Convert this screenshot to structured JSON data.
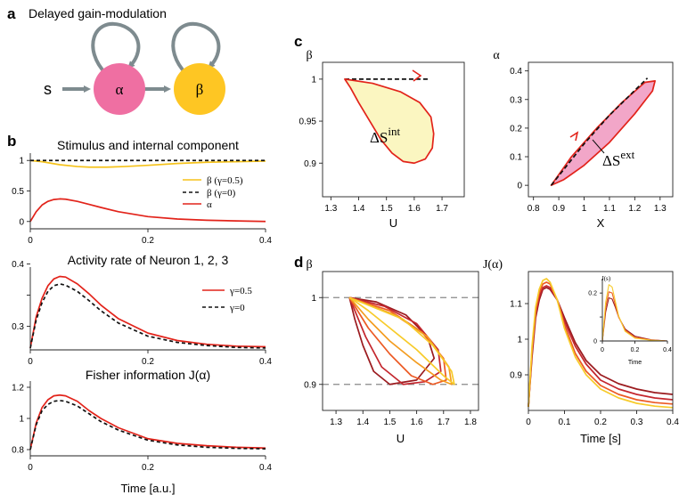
{
  "colors": {
    "alpha_node": "#ef6fa2",
    "beta_node": "#fec623",
    "arrow": "#7e8b8f",
    "red": "#e2231a",
    "yellow": "#f5c21a",
    "fill_yellow": "#fbf6c1",
    "fill_pink": "#f2a6c8",
    "black": "#111111"
  },
  "panel_a": {
    "label": "a",
    "title": "Delayed gain-modulation",
    "input_label": "s",
    "node_alpha": "α",
    "node_beta": "β"
  },
  "chart_data": [
    {
      "id": "b1",
      "panel_label": "b",
      "type": "line",
      "title": "Stimulus and internal component",
      "xlabel": "",
      "ylabel": "",
      "xlim": [
        0,
        0.4
      ],
      "ylim": [
        -0.12,
        1.12
      ],
      "xticks": [
        0,
        0.2,
        0.4
      ],
      "xtick_labels": [
        "0",
        "0.2",
        "0.4"
      ],
      "yticks": [
        0,
        0.5,
        1
      ],
      "ytick_labels": [
        "0",
        "0.5",
        "1"
      ],
      "series": [
        {
          "name": "β (γ=0.5)",
          "legend": "β  (γ=0.5)",
          "color": "#f5c21a",
          "dash": "",
          "x": [
            0,
            0.02,
            0.05,
            0.08,
            0.1,
            0.13,
            0.16,
            0.2,
            0.25,
            0.3,
            0.35,
            0.4
          ],
          "y": [
            1.0,
            0.98,
            0.93,
            0.9,
            0.89,
            0.89,
            0.9,
            0.92,
            0.95,
            0.97,
            0.98,
            0.99
          ]
        },
        {
          "name": "β (γ=0)",
          "legend": "β  (γ=0)",
          "color": "#111111",
          "dash": "4,3",
          "x": [
            0,
            0.4
          ],
          "y": [
            1.0,
            1.0
          ]
        },
        {
          "name": "α",
          "legend": "α",
          "color": "#e2231a",
          "dash": "",
          "x": [
            0,
            0.01,
            0.02,
            0.03,
            0.04,
            0.05,
            0.06,
            0.08,
            0.1,
            0.12,
            0.15,
            0.2,
            0.25,
            0.3,
            0.35,
            0.4
          ],
          "y": [
            0.0,
            0.16,
            0.27,
            0.33,
            0.36,
            0.37,
            0.365,
            0.33,
            0.28,
            0.23,
            0.16,
            0.08,
            0.04,
            0.02,
            0.01,
            0.0
          ]
        }
      ]
    },
    {
      "id": "b2",
      "type": "line",
      "title": "Activity rate of Neuron 1, 2, 3",
      "xlabel": "",
      "ylabel": "",
      "xlim": [
        0,
        0.4
      ],
      "ylim": [
        0.262,
        0.395
      ],
      "xticks": [
        0,
        0.2,
        0.4
      ],
      "xtick_labels": [
        "0",
        "0.2",
        "0.4"
      ],
      "yticks": [
        0.3,
        0.35,
        0.4
      ],
      "ytick_labels": [
        "0.3",
        "",
        "0.4"
      ],
      "series": [
        {
          "name": "γ=0.5",
          "legend": "γ=0.5",
          "color": "#e2231a",
          "dash": "",
          "x": [
            0,
            0.01,
            0.02,
            0.03,
            0.04,
            0.05,
            0.06,
            0.08,
            0.1,
            0.12,
            0.15,
            0.2,
            0.25,
            0.3,
            0.35,
            0.4
          ],
          "y": [
            0.265,
            0.315,
            0.345,
            0.365,
            0.376,
            0.38,
            0.379,
            0.368,
            0.352,
            0.334,
            0.312,
            0.289,
            0.277,
            0.271,
            0.268,
            0.267
          ]
        },
        {
          "name": "γ=0",
          "legend": "γ=0",
          "color": "#111111",
          "dash": "4,3",
          "x": [
            0,
            0.01,
            0.02,
            0.03,
            0.04,
            0.05,
            0.06,
            0.08,
            0.1,
            0.12,
            0.15,
            0.2,
            0.25,
            0.3,
            0.35,
            0.4
          ],
          "y": [
            0.265,
            0.31,
            0.338,
            0.356,
            0.365,
            0.368,
            0.366,
            0.356,
            0.341,
            0.325,
            0.305,
            0.284,
            0.274,
            0.269,
            0.266,
            0.265
          ]
        }
      ]
    },
    {
      "id": "b3",
      "type": "line",
      "title": "Fisher information J(α)",
      "xlabel": "Time [a.u.]",
      "ylabel": "",
      "xlim": [
        0,
        0.4
      ],
      "ylim": [
        0.76,
        1.24
      ],
      "xticks": [
        0,
        0.2,
        0.4
      ],
      "xtick_labels": [
        "0",
        "0.2",
        "0.4"
      ],
      "yticks": [
        0.8,
        1.0,
        1.2
      ],
      "ytick_labels": [
        "0.8",
        "1",
        "1.2"
      ],
      "series": [
        {
          "name": "γ=0.5",
          "color": "#e2231a",
          "dash": "",
          "x": [
            0,
            0.01,
            0.02,
            0.03,
            0.04,
            0.05,
            0.06,
            0.08,
            0.1,
            0.12,
            0.15,
            0.2,
            0.25,
            0.3,
            0.35,
            0.4
          ],
          "y": [
            0.8,
            0.97,
            1.07,
            1.12,
            1.145,
            1.15,
            1.145,
            1.11,
            1.05,
            1.0,
            0.94,
            0.87,
            0.84,
            0.825,
            0.815,
            0.81
          ]
        },
        {
          "name": "γ=0",
          "color": "#111111",
          "dash": "4,3",
          "x": [
            0,
            0.01,
            0.02,
            0.03,
            0.04,
            0.05,
            0.06,
            0.08,
            0.1,
            0.12,
            0.15,
            0.2,
            0.25,
            0.3,
            0.35,
            0.4
          ],
          "y": [
            0.8,
            0.96,
            1.05,
            1.09,
            1.11,
            1.115,
            1.11,
            1.08,
            1.03,
            0.98,
            0.925,
            0.86,
            0.83,
            0.815,
            0.808,
            0.805
          ]
        }
      ]
    },
    {
      "id": "c1",
      "panel_label": "c",
      "type": "line",
      "title": "",
      "xlabel": "U",
      "ylabel": "β",
      "xlim": [
        1.27,
        1.78
      ],
      "ylim": [
        0.86,
        1.02
      ],
      "xticks": [
        1.3,
        1.4,
        1.5,
        1.6,
        1.7
      ],
      "xtick_labels": [
        "1.3",
        "1.4",
        "1.5",
        "1.6",
        "1.7"
      ],
      "yticks": [
        0.9,
        0.95,
        1
      ],
      "ytick_labels": [
        "0.9",
        "0.95",
        "1"
      ],
      "annotation": "ΔS",
      "annotation_sup": "int",
      "series": [
        {
          "name": "dashed tangent",
          "color": "#111111",
          "dash": "5,3",
          "fill": "",
          "x": [
            1.35,
            1.65
          ],
          "y": [
            1.0,
            1.0
          ]
        },
        {
          "name": "loop",
          "color": "#e2231a",
          "dash": "",
          "fill": "#fbf6c1",
          "closed": true,
          "x": [
            1.35,
            1.45,
            1.55,
            1.62,
            1.66,
            1.67,
            1.665,
            1.64,
            1.6,
            1.56,
            1.52,
            1.48,
            1.44,
            1.4,
            1.37,
            1.35
          ],
          "y": [
            1.0,
            0.995,
            0.985,
            0.972,
            0.955,
            0.935,
            0.918,
            0.905,
            0.9,
            0.902,
            0.912,
            0.928,
            0.95,
            0.972,
            0.99,
            1.0
          ]
        }
      ]
    },
    {
      "id": "c2",
      "type": "line",
      "title": "",
      "xlabel": "X",
      "ylabel": "α",
      "xlim": [
        0.78,
        1.35
      ],
      "ylim": [
        -0.04,
        0.43
      ],
      "xticks": [
        0.8,
        0.9,
        1,
        1.1,
        1.2,
        1.3
      ],
      "xtick_labels": [
        "0.8",
        "0.9",
        "1",
        "1.1",
        "1.2",
        "1.3"
      ],
      "yticks": [
        0,
        0.1,
        0.2,
        0.3,
        0.4
      ],
      "ytick_labels": [
        "0",
        "0.1",
        "0.2",
        "0.3",
        "0.4"
      ],
      "annotation": "ΔS",
      "annotation_sup": "ext",
      "series": [
        {
          "name": "loop",
          "color": "#e2231a",
          "dash": "",
          "fill": "#f2a6c8",
          "closed": true,
          "x": [
            0.87,
            0.95,
            1.05,
            1.15,
            1.24,
            1.28,
            1.27,
            1.2,
            1.1,
            1.0,
            0.92,
            0.87
          ],
          "y": [
            0.0,
            0.1,
            0.2,
            0.29,
            0.36,
            0.365,
            0.33,
            0.25,
            0.15,
            0.07,
            0.02,
            0.0
          ]
        },
        {
          "name": "dashed diagonal",
          "color": "#111111",
          "dash": "5,3",
          "fill": "",
          "x": [
            0.87,
            1.0,
            1.1,
            1.25
          ],
          "y": [
            0.0,
            0.145,
            0.245,
            0.375
          ]
        }
      ]
    },
    {
      "id": "d1",
      "panel_label": "d",
      "type": "line",
      "title": "",
      "xlabel": "U",
      "ylabel": "β",
      "xlim": [
        1.25,
        1.83
      ],
      "ylim": [
        0.87,
        1.03
      ],
      "xticks": [
        1.3,
        1.4,
        1.5,
        1.6,
        1.7,
        1.8
      ],
      "xtick_labels": [
        "1.3",
        "1.4",
        "1.5",
        "1.6",
        "1.7",
        "1.8"
      ],
      "yticks": [
        0.9,
        1
      ],
      "ytick_labels": [
        "0.9",
        "1"
      ],
      "hlines": [
        0.9,
        1.0
      ],
      "series": [
        {
          "name": "loop 1",
          "color": "#9b1b1f",
          "dash": "",
          "fill": "",
          "x": [
            1.35,
            1.45,
            1.56,
            1.64,
            1.665,
            1.6,
            1.5,
            1.44,
            1.4,
            1.37,
            1.35
          ],
          "y": [
            1.0,
            0.995,
            0.98,
            0.955,
            0.93,
            0.905,
            0.9,
            0.915,
            0.945,
            0.975,
            1.0
          ]
        },
        {
          "name": "loop 2",
          "color": "#c4272e",
          "dash": "",
          "fill": "",
          "x": [
            1.35,
            1.48,
            1.6,
            1.68,
            1.69,
            1.63,
            1.55,
            1.47,
            1.41,
            1.37,
            1.35
          ],
          "y": [
            1.0,
            0.99,
            0.97,
            0.94,
            0.915,
            0.903,
            0.9,
            0.92,
            0.955,
            0.985,
            1.0
          ]
        },
        {
          "name": "loop 3",
          "color": "#ec5a24",
          "dash": "",
          "fill": "",
          "x": [
            1.35,
            1.5,
            1.62,
            1.7,
            1.71,
            1.66,
            1.58,
            1.5,
            1.42,
            1.37,
            1.35
          ],
          "y": [
            1.0,
            0.985,
            0.96,
            0.93,
            0.905,
            0.9,
            0.91,
            0.935,
            0.965,
            0.99,
            1.0
          ]
        },
        {
          "name": "loop 4",
          "color": "#f39c1f",
          "dash": "",
          "fill": "",
          "x": [
            1.35,
            1.52,
            1.64,
            1.72,
            1.73,
            1.69,
            1.6,
            1.5,
            1.42,
            1.37,
            1.35
          ],
          "y": [
            1.0,
            0.98,
            0.955,
            0.92,
            0.9,
            0.905,
            0.925,
            0.95,
            0.975,
            0.993,
            1.0
          ]
        },
        {
          "name": "loop 5",
          "color": "#f7cb2a",
          "dash": "",
          "fill": "",
          "x": [
            1.35,
            1.55,
            1.66,
            1.73,
            1.74,
            1.7,
            1.6,
            1.5,
            1.42,
            1.37,
            1.35
          ],
          "y": [
            1.0,
            0.975,
            0.945,
            0.915,
            0.9,
            0.91,
            0.94,
            0.965,
            0.985,
            0.996,
            1.0
          ]
        }
      ]
    },
    {
      "id": "d2",
      "type": "line",
      "title": "",
      "xlabel": "Time [s]",
      "ylabel": "J(α)",
      "xlim": [
        0,
        0.4
      ],
      "ylim": [
        0.8,
        1.19
      ],
      "xticks": [
        0,
        0.1,
        0.2,
        0.3,
        0.4
      ],
      "xtick_labels": [
        "0",
        "0.1",
        "0.2",
        "0.3",
        "0.4"
      ],
      "yticks": [
        0.9,
        1,
        1.1
      ],
      "ytick_labels": [
        "0.9",
        "1",
        "1.1"
      ],
      "series": [
        {
          "name": "curve 1",
          "color": "#9b1b1f",
          "dash": "",
          "x": [
            0,
            0.01,
            0.02,
            0.03,
            0.04,
            0.05,
            0.06,
            0.08,
            0.1,
            0.13,
            0.16,
            0.2,
            0.25,
            0.3,
            0.35,
            0.4
          ],
          "y": [
            0.81,
            0.95,
            1.06,
            1.11,
            1.14,
            1.145,
            1.14,
            1.11,
            1.06,
            0.99,
            0.94,
            0.9,
            0.875,
            0.86,
            0.85,
            0.845
          ]
        },
        {
          "name": "curve 2",
          "color": "#c4272e",
          "dash": "",
          "x": [
            0,
            0.01,
            0.02,
            0.03,
            0.04,
            0.05,
            0.06,
            0.08,
            0.1,
            0.13,
            0.16,
            0.2,
            0.25,
            0.3,
            0.35,
            0.4
          ],
          "y": [
            0.81,
            0.96,
            1.07,
            1.12,
            1.145,
            1.15,
            1.145,
            1.11,
            1.05,
            0.98,
            0.93,
            0.885,
            0.86,
            0.845,
            0.835,
            0.83
          ]
        },
        {
          "name": "curve 3",
          "color": "#ec5a24",
          "dash": "",
          "x": [
            0,
            0.01,
            0.02,
            0.03,
            0.04,
            0.05,
            0.06,
            0.08,
            0.1,
            0.13,
            0.16,
            0.2,
            0.25,
            0.3,
            0.35,
            0.4
          ],
          "y": [
            0.81,
            0.97,
            1.08,
            1.13,
            1.155,
            1.16,
            1.155,
            1.11,
            1.04,
            0.96,
            0.91,
            0.87,
            0.845,
            0.83,
            0.822,
            0.818
          ]
        },
        {
          "name": "curve 4",
          "color": "#f7cb2a",
          "dash": "",
          "x": [
            0,
            0.01,
            0.02,
            0.03,
            0.04,
            0.05,
            0.06,
            0.08,
            0.1,
            0.13,
            0.16,
            0.2,
            0.25,
            0.3,
            0.35,
            0.4
          ],
          "y": [
            0.81,
            0.98,
            1.09,
            1.14,
            1.165,
            1.17,
            1.16,
            1.11,
            1.03,
            0.95,
            0.9,
            0.86,
            0.835,
            0.82,
            0.812,
            0.808
          ]
        }
      ]
    },
    {
      "id": "d3",
      "type": "line",
      "title": "",
      "inset": true,
      "xlabel": "Time",
      "ylabel": "J(s)",
      "xlim": [
        0,
        0.4
      ],
      "ylim": [
        0,
        0.26
      ],
      "xticks": [
        0,
        0.2,
        0.4
      ],
      "xtick_labels": [
        "0",
        "0.2",
        "0.4"
      ],
      "yticks": [
        0,
        0.1,
        0.2
      ],
      "ytick_labels": [
        "0",
        "",
        "0.2"
      ],
      "series": [
        {
          "name": "inset 1",
          "color": "#9b1b1f",
          "dash": "",
          "x": [
            0,
            0.02,
            0.04,
            0.06,
            0.08,
            0.1,
            0.14,
            0.2,
            0.3,
            0.4
          ],
          "y": [
            0,
            0.12,
            0.18,
            0.175,
            0.14,
            0.1,
            0.05,
            0.02,
            0.005,
            0.0
          ]
        },
        {
          "name": "inset 2",
          "color": "#ec5a24",
          "dash": "",
          "x": [
            0,
            0.02,
            0.04,
            0.06,
            0.08,
            0.1,
            0.14,
            0.2,
            0.3,
            0.4
          ],
          "y": [
            0,
            0.14,
            0.205,
            0.2,
            0.15,
            0.1,
            0.045,
            0.015,
            0.004,
            0.0
          ]
        },
        {
          "name": "inset 3",
          "color": "#f7cb2a",
          "dash": "",
          "x": [
            0,
            0.02,
            0.04,
            0.06,
            0.08,
            0.1,
            0.14,
            0.2,
            0.3,
            0.4
          ],
          "y": [
            0,
            0.16,
            0.235,
            0.225,
            0.165,
            0.105,
            0.04,
            0.012,
            0.003,
            0.0
          ]
        }
      ]
    }
  ]
}
